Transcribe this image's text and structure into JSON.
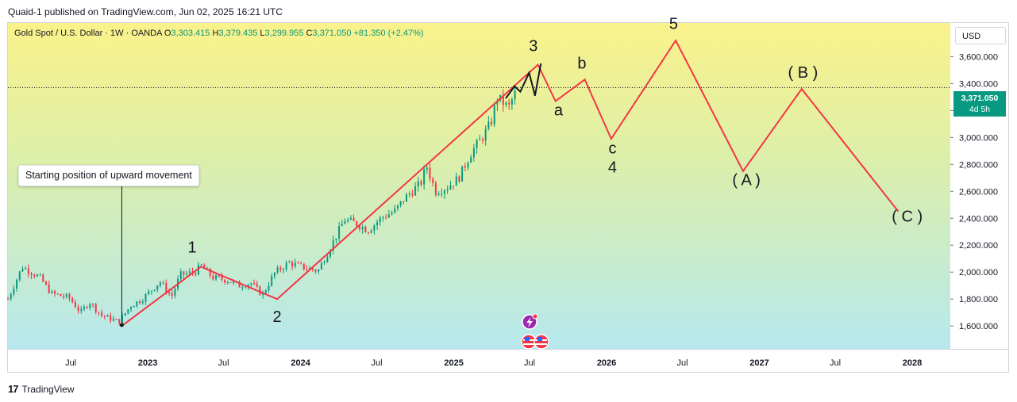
{
  "published": "Quaid-1 published on TradingView.com, Jun 02, 2025 16:21 UTC",
  "header": {
    "symbol": "Gold Spot / U.S. Dollar · 1W · OANDA",
    "o_label": "O",
    "o": "3,303.415",
    "h_label": "H",
    "h": "3,379.435",
    "l_label": "L",
    "l": "3,299.955",
    "c_label": "C",
    "c": "3,371.050",
    "change": "+81.350 (+2.47%)"
  },
  "currency": "USD",
  "last_price": {
    "value": "3,371.050",
    "countdown": "4d 5h",
    "price": 3371.05
  },
  "annotation": "Starting position of upward movement",
  "footer": {
    "brand": "TradingView"
  },
  "colors": {
    "up": "#089981",
    "down": "#f23645",
    "wave": "#f23645",
    "wave3_sub": "#131722"
  },
  "chart_data": {
    "type": "line",
    "y_axis": {
      "range": [
        1430,
        3850
      ],
      "ticks": [
        1600,
        1800,
        2000,
        2200,
        2400,
        2600,
        2800,
        3000,
        3200,
        3400,
        3600
      ],
      "tick_labels": [
        "1,600.000",
        "1,800.000",
        "2,000.000",
        "2,200.000",
        "2,400.000",
        "2,600.000",
        "2,800.000",
        "3,000.000",
        "3,200.000",
        "3,400.000",
        "3,600.000"
      ]
    },
    "x_axis": {
      "range": [
        "2022-02-01",
        "2028-04-01"
      ],
      "ticks": [
        {
          "date": "2022-07-01",
          "label": "Jul",
          "major": false
        },
        {
          "date": "2023-01-01",
          "label": "2023",
          "major": true
        },
        {
          "date": "2023-07-01",
          "label": "Jul",
          "major": false
        },
        {
          "date": "2024-01-01",
          "label": "2024",
          "major": true
        },
        {
          "date": "2024-07-01",
          "label": "Jul",
          "major": false
        },
        {
          "date": "2025-01-01",
          "label": "2025",
          "major": true
        },
        {
          "date": "2025-07-01",
          "label": "Jul",
          "major": false
        },
        {
          "date": "2026-01-01",
          "label": "2026",
          "major": true
        },
        {
          "date": "2026-07-01",
          "label": "Jul",
          "major": false
        },
        {
          "date": "2027-01-01",
          "label": "2027",
          "major": true
        },
        {
          "date": "2027-07-01",
          "label": "Jul",
          "major": false
        },
        {
          "date": "2028-01-01",
          "label": "2028",
          "major": true
        }
      ]
    },
    "price_path": [
      [
        "2022-02-01",
        1800
      ],
      [
        "2022-03-07",
        2040
      ],
      [
        "2022-04-18",
        1960
      ],
      [
        "2022-05-16",
        1840
      ],
      [
        "2022-06-27",
        1810
      ],
      [
        "2022-07-25",
        1700
      ],
      [
        "2022-08-15",
        1780
      ],
      [
        "2022-09-12",
        1680
      ],
      [
        "2022-10-24",
        1630
      ],
      [
        "2022-11-21",
        1750
      ],
      [
        "2022-12-19",
        1800
      ],
      [
        "2023-01-30",
        1930
      ],
      [
        "2023-02-27",
        1820
      ],
      [
        "2023-03-20",
        1980
      ],
      [
        "2023-04-24",
        2000
      ],
      [
        "2023-05-08",
        2050
      ],
      [
        "2023-06-05",
        1960
      ],
      [
        "2023-07-10",
        1940
      ],
      [
        "2023-08-07",
        1900
      ],
      [
        "2023-09-04",
        1920
      ],
      [
        "2023-10-02",
        1830
      ],
      [
        "2023-10-30",
        1990
      ],
      [
        "2023-12-04",
        2070
      ],
      [
        "2024-01-15",
        2030
      ],
      [
        "2024-02-12",
        2010
      ],
      [
        "2024-03-11",
        2180
      ],
      [
        "2024-04-15",
        2390
      ],
      [
        "2024-05-13",
        2360
      ],
      [
        "2024-06-10",
        2310
      ],
      [
        "2024-07-15",
        2410
      ],
      [
        "2024-08-12",
        2450
      ],
      [
        "2024-09-09",
        2560
      ],
      [
        "2024-10-14",
        2660
      ],
      [
        "2024-10-28",
        2790
      ],
      [
        "2024-11-18",
        2600
      ],
      [
        "2024-12-16",
        2630
      ],
      [
        "2025-01-13",
        2700
      ],
      [
        "2025-02-10",
        2880
      ],
      [
        "2025-03-10",
        3000
      ],
      [
        "2025-03-31",
        3110
      ],
      [
        "2025-04-14",
        3300
      ],
      [
        "2025-05-12",
        3220
      ],
      [
        "2025-06-02",
        3371
      ]
    ],
    "wave_path": [
      [
        "2022-10-31",
        1600
      ],
      [
        "2023-05-08",
        2040
      ],
      [
        "2023-11-06",
        1800
      ],
      [
        "2025-07-21",
        3540
      ],
      [
        "2025-09-01",
        3270
      ],
      [
        "2025-11-10",
        3430
      ],
      [
        "2026-01-12",
        2990
      ],
      [
        "2026-06-15",
        3720
      ],
      [
        "2026-11-23",
        2750
      ],
      [
        "2027-04-12",
        3360
      ],
      [
        "2027-11-29",
        2450
      ]
    ],
    "wave3_sub_path": [
      [
        "2025-05-05",
        3290
      ],
      [
        "2025-05-26",
        3380
      ],
      [
        "2025-06-09",
        3340
      ],
      [
        "2025-06-30",
        3480
      ],
      [
        "2025-07-14",
        3310
      ],
      [
        "2025-07-28",
        3550
      ]
    ],
    "wave_labels": [
      {
        "text": "1",
        "date": "2023-04-17",
        "price": 2145
      },
      {
        "text": "2",
        "date": "2023-11-06",
        "price": 1630
      },
      {
        "text": "3",
        "date": "2025-07-10",
        "price": 3640
      },
      {
        "text": "a",
        "date": "2025-09-08",
        "price": 3165
      },
      {
        "text": "b",
        "date": "2025-11-03",
        "price": 3510
      },
      {
        "text": "c",
        "date": "2026-01-15",
        "price": 2880
      },
      {
        "text": "4",
        "date": "2026-01-15",
        "price": 2740
      },
      {
        "text": "5",
        "date": "2026-06-10",
        "price": 3805
      },
      {
        "text": "( A )",
        "date": "2026-12-01",
        "price": 2645
      },
      {
        "text": "( B )",
        "date": "2027-04-15",
        "price": 3445
      },
      {
        "text": "( C )",
        "date": "2027-12-20",
        "price": 2375
      }
    ],
    "start_marker": {
      "date": "2022-10-31",
      "price": 1625
    }
  }
}
